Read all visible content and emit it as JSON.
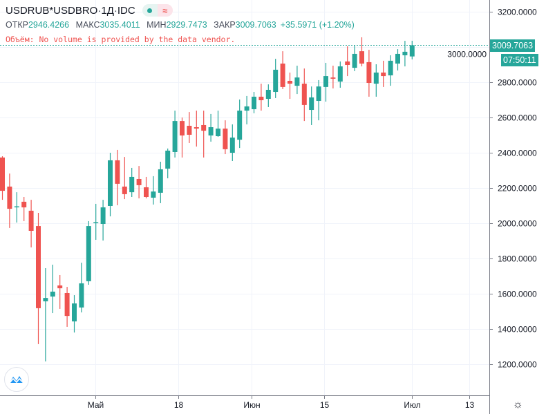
{
  "header": {
    "symbol": "USDRUB*USDBRO",
    "interval": "1Д",
    "source": "IDC",
    "sep": " · ",
    "status_icons": [
      "market-open-dot-icon",
      "delayed-data-wave-icon"
    ],
    "wave_glyph": "≈",
    "ohlc": {
      "open_label": "ОТКР",
      "open": "2946.4266",
      "high_label": "МАКС",
      "high": "3035.4011",
      "low_label": "МИН",
      "low": "2929.7473",
      "close_label": "ЗАКР",
      "close": "3009.7063",
      "change": "+35.5971 (+1.20%)"
    },
    "volume_message": "Объём: No volume is provided by the data vendor."
  },
  "last_price_label": "3009.7063",
  "countdown": "07:50:11",
  "colors": {
    "up": "#26a69a",
    "down": "#ef5350",
    "grid": "#f0f3fa",
    "axis": "#787b86"
  },
  "settings_icon": "gear-icon",
  "chart_data": {
    "type": "candlestick",
    "title": "USDRUB*USDBRO · 1Д · IDC",
    "ylim": [
      1000,
      3300
    ],
    "y_ticks": [
      "3200.0000",
      "3000.0000",
      "2800.0000",
      "2600.0000",
      "2400.0000",
      "2200.0000",
      "2000.0000",
      "1800.0000",
      "1600.0000",
      "1400.0000",
      "1200.0000"
    ],
    "x_ticks": [
      {
        "label": "Май",
        "index": 13
      },
      {
        "label": "18",
        "index": 24.5
      },
      {
        "label": "Июн",
        "index": 34.7
      },
      {
        "label": "15",
        "index": 44.8
      },
      {
        "label": "Июл",
        "index": 57
      },
      {
        "label": "13",
        "index": 65
      }
    ],
    "last_price": 3009.7063,
    "candles": [
      [
        2373,
        2380,
        2133,
        2184
      ],
      [
        2208,
        2282,
        1973,
        2082
      ],
      [
        2092,
        2176,
        2004,
        2096
      ],
      [
        2122,
        2149,
        2012,
        2090
      ],
      [
        2071,
        2133,
        1863,
        1957
      ],
      [
        1984,
        2059,
        1314,
        1518
      ],
      [
        1557,
        1745,
        1216,
        1576
      ],
      [
        1584,
        1765,
        1490,
        1612
      ],
      [
        1647,
        1706,
        1514,
        1631
      ],
      [
        1604,
        1639,
        1412,
        1474
      ],
      [
        1443,
        1592,
        1380,
        1545
      ],
      [
        1522,
        1776,
        1494,
        1659
      ],
      [
        1671,
        2012,
        1651,
        1984
      ],
      [
        2002,
        2110,
        1906,
        2006
      ],
      [
        1996,
        2133,
        1902,
        2090
      ],
      [
        2098,
        2400,
        2039,
        2357
      ],
      [
        2357,
        2416,
        2102,
        2224
      ],
      [
        2208,
        2376,
        2137,
        2165
      ],
      [
        2176,
        2314,
        2149,
        2263
      ],
      [
        2251,
        2325,
        2141,
        2216
      ],
      [
        2204,
        2263,
        2141,
        2149
      ],
      [
        2145,
        2267,
        2106,
        2180
      ],
      [
        2173,
        2349,
        2114,
        2306
      ],
      [
        2310,
        2424,
        2255,
        2412
      ],
      [
        2404,
        2639,
        2373,
        2580
      ],
      [
        2580,
        2600,
        2373,
        2498
      ],
      [
        2553,
        2631,
        2455,
        2502
      ],
      [
        2545,
        2639,
        2435,
        2537
      ],
      [
        2557,
        2639,
        2373,
        2525
      ],
      [
        2498,
        2620,
        2463,
        2545
      ],
      [
        2494,
        2639,
        2490,
        2537
      ],
      [
        2537,
        2584,
        2392,
        2420
      ],
      [
        2400,
        2561,
        2353,
        2486
      ],
      [
        2474,
        2702,
        2427,
        2639
      ],
      [
        2639,
        2722,
        2561,
        2663
      ],
      [
        2647,
        2745,
        2624,
        2718
      ],
      [
        2718,
        2792,
        2639,
        2698
      ],
      [
        2706,
        2788,
        2659,
        2757
      ],
      [
        2745,
        2933,
        2710,
        2871
      ],
      [
        2906,
        2976,
        2761,
        2773
      ],
      [
        2808,
        2855,
        2706,
        2792
      ],
      [
        2780,
        2894,
        2733,
        2827
      ],
      [
        2792,
        2878,
        2580,
        2671
      ],
      [
        2643,
        2776,
        2557,
        2714
      ],
      [
        2694,
        2812,
        2584,
        2776
      ],
      [
        2773,
        2910,
        2690,
        2835
      ],
      [
        2827,
        2894,
        2765,
        2820
      ],
      [
        2804,
        2918,
        2769,
        2890
      ],
      [
        2918,
        3004,
        2835,
        2898
      ],
      [
        2882,
        3008,
        2863,
        2961
      ],
      [
        2976,
        3055,
        2890,
        2906
      ],
      [
        2914,
        2984,
        2718,
        2796
      ],
      [
        2792,
        2902,
        2718,
        2855
      ],
      [
        2855,
        2922,
        2773,
        2835
      ],
      [
        2839,
        2953,
        2780,
        2922
      ],
      [
        2906,
        2988,
        2867,
        2961
      ],
      [
        2953,
        3035,
        2890,
        2973
      ],
      [
        2946.4266,
        3035.4011,
        2929.7473,
        3009.7063
      ]
    ],
    "candle_format": [
      "open",
      "high",
      "low",
      "close"
    ],
    "grid": true
  }
}
